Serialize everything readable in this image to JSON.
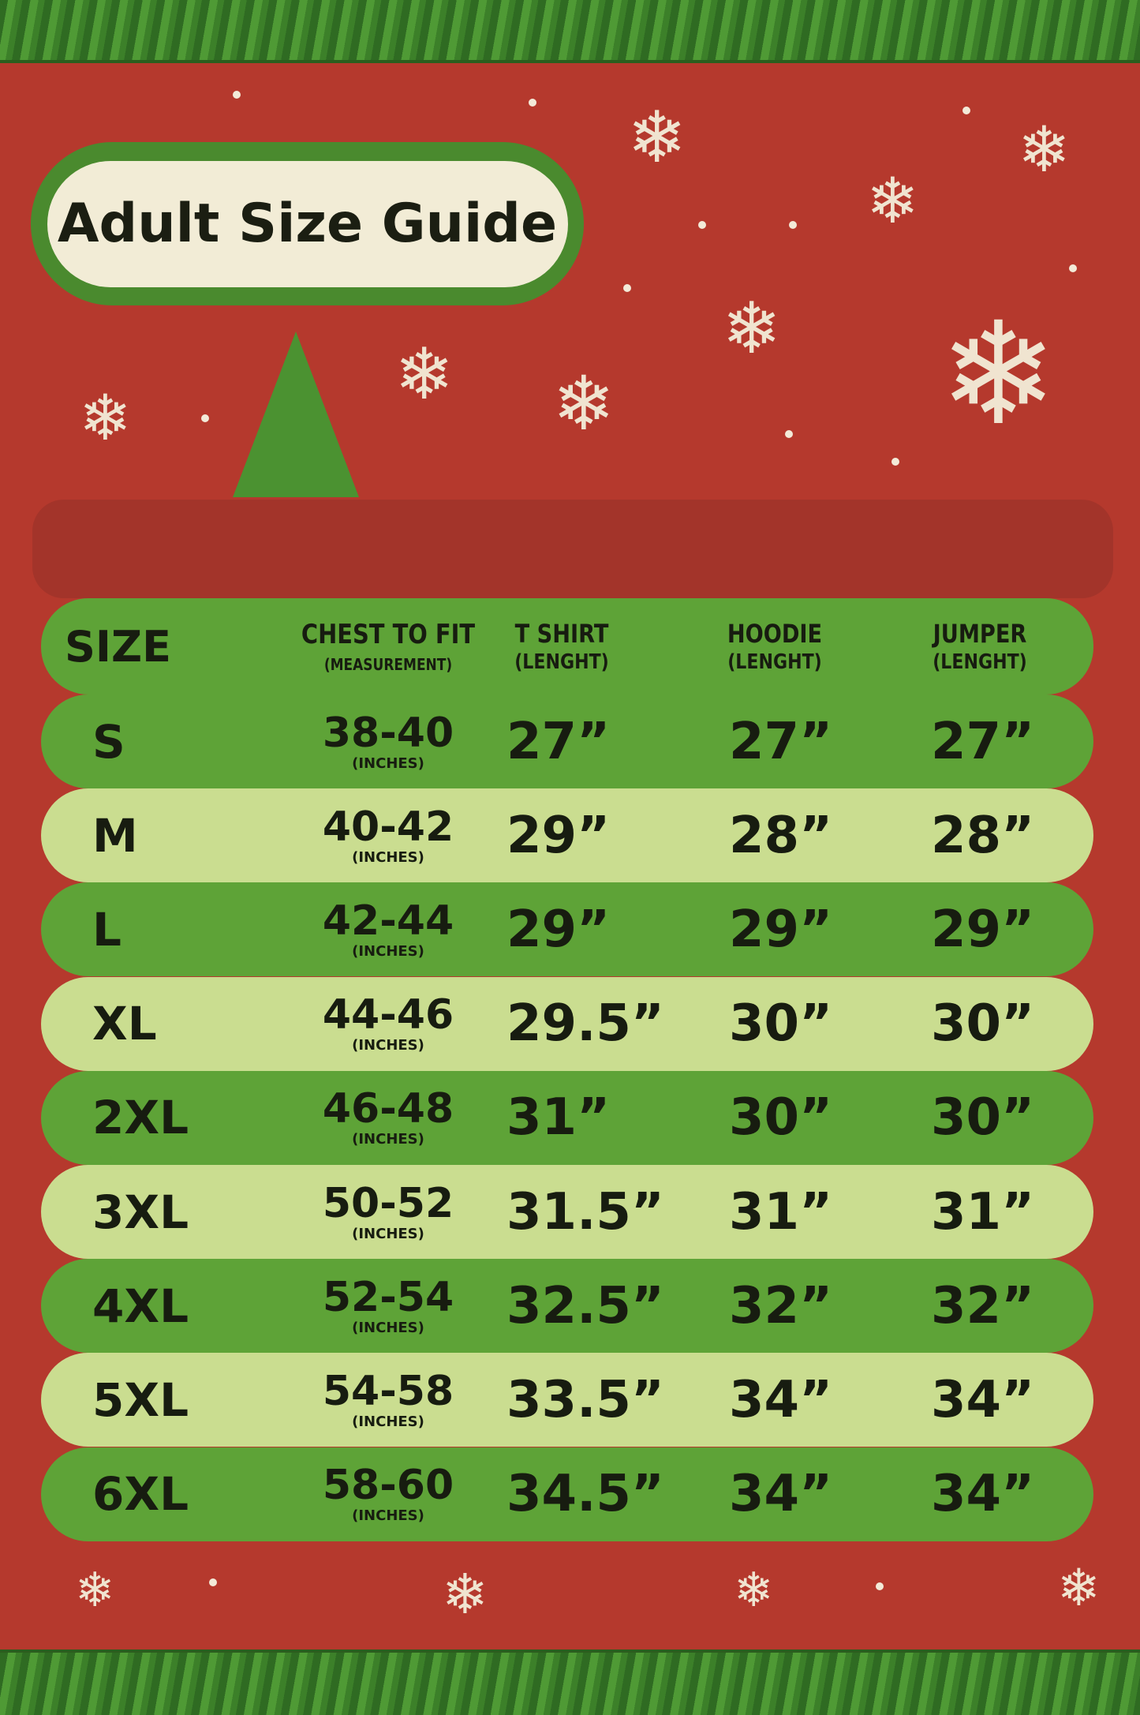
{
  "title": "Adult Size Guide",
  "colors": {
    "background": "#b5392d",
    "row_dark": "#5ea337",
    "row_light": "#cadd90",
    "title_bg": "#f2ecd6"
  },
  "header": {
    "size": "SIZE",
    "chest": "CHEST TO FIT",
    "chest_sub": "(MEASUREMENT)",
    "tshirt": "T SHIRT",
    "hoodie": "HOODIE",
    "jumper": "JUMPER",
    "length_sub": "(LENGHT)"
  },
  "rows": [
    {
      "size": "S",
      "chest": "38-40",
      "unit": "(INCHES)",
      "tshirt": "27”",
      "hoodie": "27”",
      "jumper": "27”"
    },
    {
      "size": "M",
      "chest": "40-42",
      "unit": "(INCHES)",
      "tshirt": "29”",
      "hoodie": "28”",
      "jumper": "28”"
    },
    {
      "size": "L",
      "chest": "42-44",
      "unit": "(INCHES)",
      "tshirt": "29”",
      "hoodie": "29”",
      "jumper": "29”"
    },
    {
      "size": "XL",
      "chest": "44-46",
      "unit": "(INCHES)",
      "tshirt": "29.5”",
      "hoodie": "30”",
      "jumper": "30”"
    },
    {
      "size": "2XL",
      "chest": "46-48",
      "unit": "(INCHES)",
      "tshirt": "31”",
      "hoodie": "30”",
      "jumper": "30”"
    },
    {
      "size": "3XL",
      "chest": "50-52",
      "unit": "(INCHES)",
      "tshirt": "31.5”",
      "hoodie": "31”",
      "jumper": "31”"
    },
    {
      "size": "4XL",
      "chest": "52-54",
      "unit": "(INCHES)",
      "tshirt": "32.5”",
      "hoodie": "32”",
      "jumper": "32”"
    },
    {
      "size": "5XL",
      "chest": "54-58",
      "unit": "(INCHES)",
      "tshirt": "33.5”",
      "hoodie": "34”",
      "jumper": "34”"
    },
    {
      "size": "6XL",
      "chest": "58-60",
      "unit": "(INCHES)",
      "tshirt": "34.5”",
      "hoodie": "34”",
      "jumper": "34”"
    }
  ]
}
